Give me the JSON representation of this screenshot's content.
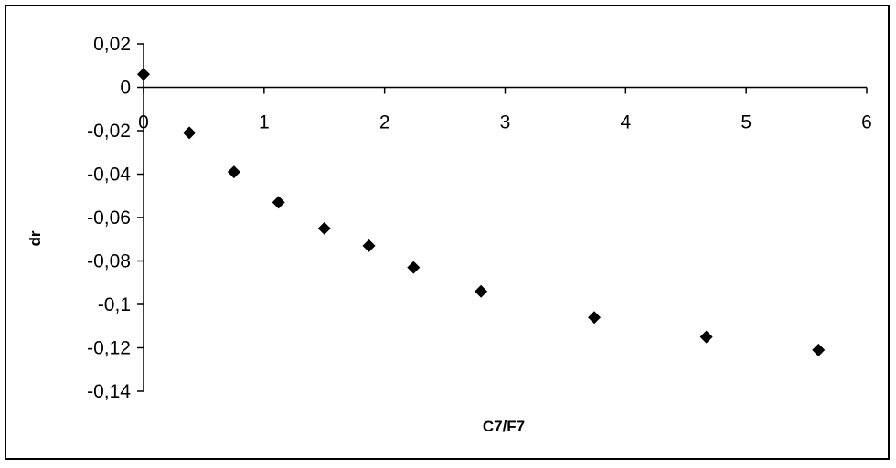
{
  "chart_data": {
    "type": "scatter",
    "title": "",
    "xlabel": "C7/F7",
    "ylabel": "dr",
    "xlim": [
      0,
      6
    ],
    "ylim": [
      -0.14,
      0.02
    ],
    "x_ticks": [
      0,
      1,
      2,
      3,
      4,
      5,
      6
    ],
    "x_tick_labels": [
      "0",
      "1",
      "2",
      "3",
      "4",
      "5",
      "6"
    ],
    "y_ticks": [
      0.02,
      0,
      -0.02,
      -0.04,
      -0.06,
      -0.08,
      -0.1,
      -0.12,
      -0.14
    ],
    "y_tick_labels": [
      "0,02",
      "0",
      "-0,02",
      "-0,04",
      "-0,06",
      "-0,08",
      "-0,1",
      "-0,12",
      "-0,14"
    ],
    "grid": false,
    "legend": "none",
    "marker": "diamond",
    "marker_color": "#000000",
    "series": [
      {
        "x": [
          0,
          0.38,
          0.75,
          1.12,
          1.5,
          1.87,
          2.24,
          2.8,
          3.74,
          4.67,
          5.6
        ],
        "y": [
          0.006,
          -0.021,
          -0.039,
          -0.053,
          -0.065,
          -0.073,
          -0.083,
          -0.094,
          -0.106,
          -0.115,
          -0.121
        ]
      }
    ]
  }
}
